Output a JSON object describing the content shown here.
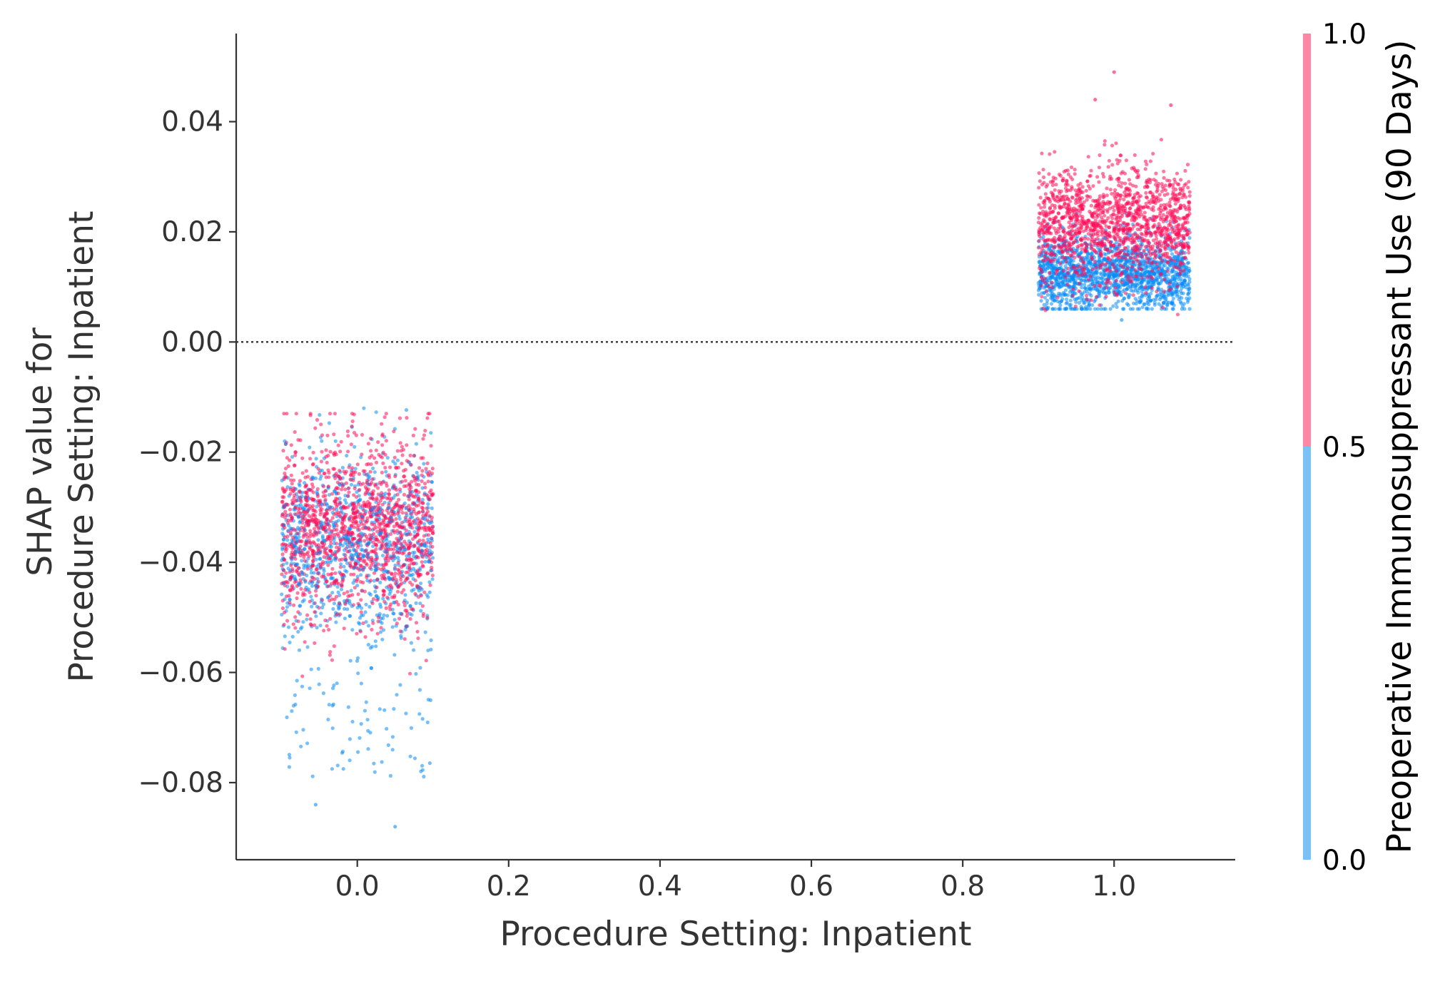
{
  "chart_data": {
    "type": "scatter",
    "title": "",
    "xlabel": "Procedure Setting: Inpatient",
    "ylabel_lines": [
      "SHAP value for",
      "Procedure Setting: Inpatient"
    ],
    "xlim": [
      -0.16,
      1.16
    ],
    "ylim": [
      -0.094,
      0.056
    ],
    "x_ticks": [
      0.0,
      0.2,
      0.4,
      0.6,
      0.8,
      1.0
    ],
    "x_tick_labels": [
      "0.0",
      "0.2",
      "0.4",
      "0.6",
      "0.8",
      "1.0"
    ],
    "y_ticks": [
      0.04,
      0.02,
      0.0,
      -0.02,
      -0.04,
      -0.06,
      -0.08
    ],
    "y_tick_labels": [
      "0.04",
      "0.02",
      "0.00",
      "−0.02",
      "−0.04",
      "−0.06",
      "−0.08"
    ],
    "reference_line": {
      "y": 0.0,
      "style": "dotted",
      "color": "#333333"
    },
    "grid": false,
    "colorbar": {
      "label": "Preoperative Immunosuppressant Use (90 Days)",
      "ticks": [
        1.0,
        0.5,
        0.0
      ],
      "tick_labels": [
        "1.0",
        "0.5",
        "0.0"
      ],
      "low_color": "#7cc1f5",
      "high_color": "#ff87a6"
    },
    "series": [
      {
        "color_value": 0,
        "color": "#0a8cf5",
        "groups": [
          {
            "x_center": 0.0,
            "x_jitter": 0.1,
            "n": 700,
            "y_mean": -0.037,
            "y_sd": 0.009,
            "y_min": -0.088,
            "y_max": -0.012,
            "tail_n": 70,
            "tail_y_range": [
              -0.079,
              -0.061
            ]
          },
          {
            "x_center": 1.0,
            "x_jitter": 0.1,
            "n": 1600,
            "y_mean": 0.0125,
            "y_sd": 0.0035,
            "y_min": 0.006,
            "y_max": 0.027
          }
        ]
      },
      {
        "color_value": 1,
        "color": "#ff0d57",
        "groups": [
          {
            "x_center": 0.0,
            "x_jitter": 0.1,
            "n": 1400,
            "y_mean": -0.034,
            "y_sd": 0.0085,
            "y_min": -0.077,
            "y_max": -0.013
          },
          {
            "x_center": 1.0,
            "x_jitter": 0.1,
            "n": 1400,
            "y_mean": 0.0215,
            "y_sd": 0.005,
            "y_min": 0.004,
            "y_max": 0.049
          }
        ]
      }
    ]
  }
}
